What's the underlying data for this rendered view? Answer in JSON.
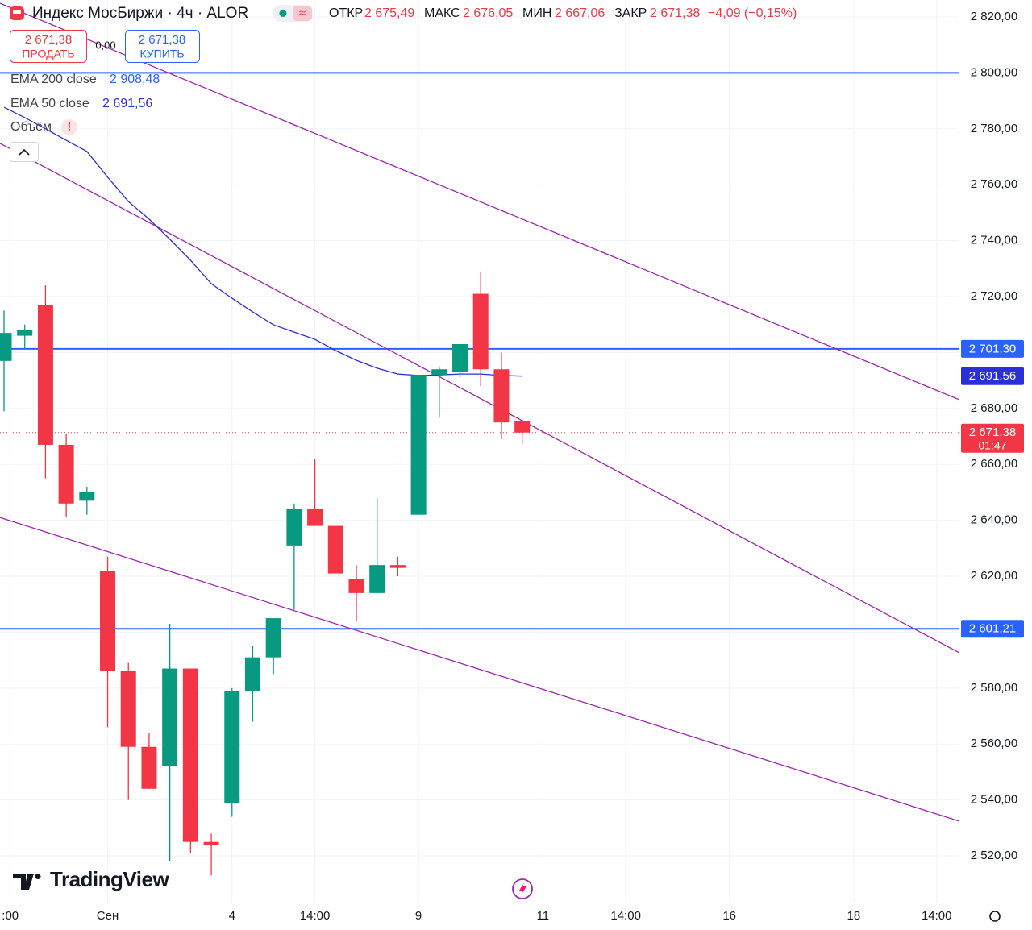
{
  "toolbar": {
    "title": "Индекс МосБиржи · 4ч · ALOR",
    "open_label": "ОТКР",
    "open": "2 675,49",
    "high_label": "МАКС",
    "high": "2 676,05",
    "low_label": "МИН",
    "low": "2 667,06",
    "close_label": "ЗАКР",
    "close": "2 671,38",
    "change": "−4,09 (−0,15%)",
    "sell_price": "2 671,38",
    "sell": "ПРОДАТЬ",
    "spread": "0,00",
    "buy_price": "2 671,38",
    "buy": "КУПИТЬ",
    "volume": "Объём",
    "volume_alert": "!",
    "logo": "TradingView"
  },
  "chart_data": {
    "type": "candlestick",
    "open": [
      2697,
      2706,
      2717,
      2667,
      2647,
      2622,
      2586,
      2559,
      2552,
      2587,
      2525,
      2539,
      2579,
      2591,
      2631,
      2644,
      2638,
      2619,
      2614,
      2624,
      2642,
      2692,
      2693,
      2721,
      2694,
      2675.49
    ],
    "high": [
      2715,
      2710,
      2724,
      2671,
      2652,
      2627,
      2589,
      2564,
      2603,
      2587,
      2528,
      2580,
      2595,
      2605,
      2646,
      2662,
      2638,
      2624,
      2648,
      2627,
      2692,
      2695,
      2703,
      2729,
      2700,
      2676.05
    ],
    "low": [
      2679,
      2701,
      2655,
      2641,
      2642,
      2566,
      2540,
      2544,
      2518,
      2521,
      2513,
      2534,
      2568,
      2585,
      2608,
      2638,
      2621,
      2604,
      2614,
      2620,
      2642,
      2677,
      2691,
      2688,
      2669,
      2667.06
    ],
    "close": [
      2707,
      2708,
      2667,
      2646,
      2650,
      2586,
      2559,
      2544,
      2587,
      2525,
      2524,
      2579,
      2591,
      2605,
      2644,
      2638,
      2621,
      2614,
      2624,
      2623,
      2692,
      2694,
      2703,
      2694,
      2675,
      2671.38
    ],
    "up_color": "#089981",
    "down_color": "#f23645",
    "ema_slow": {
      "name": "EMA 200 close",
      "color": "#2962ff",
      "value": 2908.48,
      "value_label": "2 908,48"
    },
    "ema_fast": {
      "name": "EMA 50 close",
      "color": "#2b2fd9",
      "values": [
        2787.7,
        2784.0,
        2780.0,
        2775.9,
        2771.9,
        2762.7,
        2754.0,
        2747.7,
        2740.5,
        2733.0,
        2724.6,
        2719.4,
        2714.5,
        2709.9,
        2707.3,
        2704.7,
        2700.7,
        2697.2,
        2694.4,
        2692.3,
        2691.8,
        2692.0,
        2692.3,
        2692.3,
        2691.8,
        2691.56
      ],
      "value_label": "2 691,56"
    },
    "horizontal_lines": [
      {
        "value": 2800,
        "color": "#2962ff"
      },
      {
        "value": 2701.3,
        "label": "2 701,30",
        "color": "#2962ff"
      },
      {
        "value": 2601.21,
        "label": "2 601,21",
        "color": "#2962ff"
      }
    ],
    "trend_lines": [
      {
        "color": "#9c27b0",
        "start": [
          -0.2,
          2824.9
        ],
        "end": [
          46.1,
          2683.1
        ]
      },
      {
        "color": "#9c27b0",
        "start": [
          -0.2,
          2774.8
        ],
        "end": [
          46.1,
          2592.6
        ]
      },
      {
        "color": "#9c27b0",
        "start": [
          -0.2,
          2641.0
        ],
        "end": [
          46.1,
          2532.4
        ]
      }
    ],
    "last_price": {
      "value": 2671.38,
      "label": "2 671,38",
      "countdown": "01:47",
      "color": "#f23645"
    },
    "xlim": [
      -0.195,
      46.1
    ],
    "ylim": [
      2503.3,
      2826.05
    ],
    "yticks": [
      {
        "value": 2520,
        "label": "2 520,00"
      },
      {
        "value": 2540,
        "label": "2 540,00"
      },
      {
        "value": 2560,
        "label": "2 560,00"
      },
      {
        "value": 2580,
        "label": "2 580,00"
      },
      {
        "value": 2600,
        "label": "2 600,00"
      },
      {
        "value": 2620,
        "label": "2 620,00"
      },
      {
        "value": 2640,
        "label": "2 640,00"
      },
      {
        "value": 2660,
        "label": "2 660,00"
      },
      {
        "value": 2680,
        "label": "2 680,00"
      },
      {
        "value": 2700,
        "label": "2 700,00"
      },
      {
        "value": 2720,
        "label": "2 720,00"
      },
      {
        "value": 2740,
        "label": "2 740,00"
      },
      {
        "value": 2760,
        "label": "2 760,00"
      },
      {
        "value": 2780,
        "label": "2 780,00"
      },
      {
        "value": 2800,
        "label": "2 800,00"
      },
      {
        "value": 2820,
        "label": "2 820,00"
      }
    ],
    "xticks": [
      {
        "value": 0.3,
        "label": ":00"
      },
      {
        "value": 5,
        "label": "Сен"
      },
      {
        "value": 11,
        "label": "4"
      },
      {
        "value": 15,
        "label": "14:00"
      },
      {
        "value": 20,
        "label": "9"
      },
      {
        "value": 26,
        "label": "11"
      },
      {
        "value": 30,
        "label": "14:00"
      },
      {
        "value": 35,
        "label": "16"
      },
      {
        "value": 41,
        "label": "18"
      },
      {
        "value": 45,
        "label": "14:00"
      }
    ],
    "grid": true
  }
}
